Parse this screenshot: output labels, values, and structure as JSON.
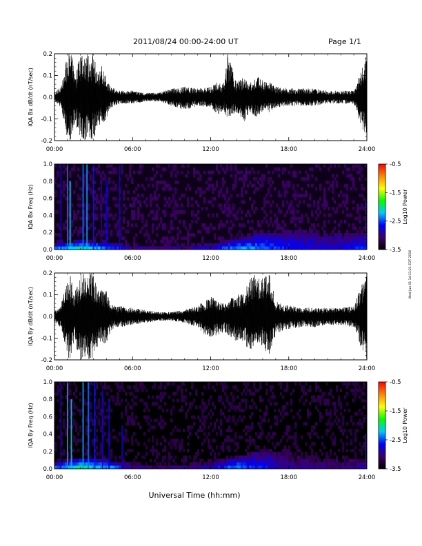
{
  "header": {
    "title": "2011/08/24  00:00-24:00 UT",
    "page": "Page 1/1"
  },
  "footer": {
    "xlabel": "Universal Time (hh:mm)",
    "side_note": "Wed Jun 01 14:31:21 EDT 2016"
  },
  "colors": {
    "trace": "#000000",
    "colormap": [
      "#000000",
      "#3d0066",
      "#0000ff",
      "#00c8ff",
      "#00ff00",
      "#ffff00",
      "#ff8800",
      "#ff0000"
    ]
  },
  "chart_data": [
    {
      "type": "line",
      "title": "",
      "ylabel": "IQA Bx dB/dt (nT/sec)",
      "xlabel": "",
      "x_ticks": [
        "00:00",
        "06:00",
        "12:00",
        "18:00",
        "24:00"
      ],
      "y_ticks": [
        "-0.2",
        "-0.1",
        "0.0",
        "0.1",
        "0.2"
      ],
      "xlim": [
        0,
        24
      ],
      "ylim": [
        -0.2,
        0.2
      ],
      "series": [
        {
          "x": [
            0,
            0.5,
            1.0,
            1.3,
            1.6,
            2.0,
            2.2,
            2.5,
            3.0,
            3.3,
            3.6,
            4.0,
            4.3,
            4.6,
            5.0,
            6.0,
            7.0,
            8.0,
            9.0,
            10.0,
            11.0,
            12.0,
            12.5,
            13.0,
            13.3,
            14.0,
            14.5,
            15.0,
            15.5,
            16.0,
            16.5,
            17.0,
            18.0,
            19.0,
            20.0,
            21.0,
            22.0,
            23.0,
            23.9,
            24.0
          ],
          "y_max": [
            0.02,
            0.05,
            0.2,
            0.2,
            0.1,
            0.2,
            0.2,
            0.2,
            0.2,
            0.12,
            0.15,
            0.09,
            0.05,
            0.04,
            0.03,
            0.03,
            0.02,
            0.02,
            0.04,
            0.05,
            0.04,
            0.05,
            0.07,
            0.06,
            0.2,
            0.07,
            0.09,
            0.07,
            0.1,
            0.08,
            0.07,
            0.05,
            0.04,
            0.04,
            0.04,
            0.03,
            0.03,
            0.03,
            0.2,
            0.2
          ],
          "y_min": [
            -0.02,
            -0.05,
            -0.2,
            -0.2,
            -0.12,
            -0.2,
            -0.2,
            -0.2,
            -0.2,
            -0.14,
            -0.12,
            -0.11,
            -0.05,
            -0.04,
            -0.03,
            -0.03,
            -0.02,
            -0.02,
            -0.04,
            -0.06,
            -0.04,
            -0.05,
            -0.09,
            -0.06,
            -0.1,
            -0.07,
            -0.12,
            -0.08,
            -0.09,
            -0.08,
            -0.07,
            -0.05,
            -0.04,
            -0.04,
            -0.04,
            -0.03,
            -0.03,
            -0.03,
            -0.2,
            -0.2
          ]
        }
      ]
    },
    {
      "type": "heatmap",
      "title": "",
      "ylabel": "IQA Bx Freq (Hz)",
      "xlabel": "",
      "x_ticks": [
        "00:00",
        "06:00",
        "12:00",
        "18:00",
        "24:00"
      ],
      "y_ticks": [
        "0.0",
        "0.2",
        "0.4",
        "0.6",
        "0.8",
        "1.0"
      ],
      "xlim": [
        0,
        24
      ],
      "ylim": [
        0,
        1.0
      ],
      "colorbar": {
        "label": "Log10 Power",
        "ticks": [
          "-0.5",
          "-1.5",
          "-2.5",
          "-3.5"
        ],
        "range": [
          -3.5,
          -0.5
        ]
      },
      "background_level": -3.4,
      "low_freq_band": {
        "x": [
          0,
          2,
          4,
          6,
          8,
          10,
          12,
          14,
          16,
          18,
          20,
          22,
          24
        ],
        "top_hz": [
          0.08,
          0.1,
          0.08,
          0.06,
          0.05,
          0.06,
          0.08,
          0.12,
          0.2,
          0.22,
          0.22,
          0.2,
          0.2
        ],
        "peak_level": [
          -2.3,
          -1.9,
          -2.2,
          -2.8,
          -3.0,
          -2.9,
          -2.7,
          -2.2,
          -2.4,
          -2.6,
          -2.7,
          -2.7,
          -2.5
        ]
      },
      "streaks": [
        {
          "t": 0.5,
          "top_hz": 1.0,
          "level": -2.8
        },
        {
          "t": 1.0,
          "top_hz": 1.0,
          "level": -2.4
        },
        {
          "t": 1.2,
          "top_hz": 0.8,
          "level": -2.2
        },
        {
          "t": 2.2,
          "top_hz": 1.0,
          "level": -2.4
        },
        {
          "t": 2.5,
          "top_hz": 1.0,
          "level": -2.3
        },
        {
          "t": 3.0,
          "top_hz": 1.0,
          "level": -2.6
        },
        {
          "t": 3.6,
          "top_hz": 0.9,
          "level": -2.8
        },
        {
          "t": 4.0,
          "top_hz": 0.8,
          "level": -2.7
        },
        {
          "t": 5.0,
          "top_hz": 1.0,
          "level": -2.7
        },
        {
          "t": 23.9,
          "top_hz": 0.6,
          "level": -2.6
        }
      ]
    },
    {
      "type": "line",
      "title": "",
      "ylabel": "IQA By dB/dt (nT/sec)",
      "xlabel": "",
      "x_ticks": [
        "00:00",
        "06:00",
        "12:00",
        "18:00",
        "24:00"
      ],
      "y_ticks": [
        "-0.2",
        "-0.1",
        "0.0",
        "0.1",
        "0.2"
      ],
      "xlim": [
        0,
        24
      ],
      "ylim": [
        -0.2,
        0.2
      ],
      "series": [
        {
          "x": [
            0,
            0.5,
            1.0,
            1.2,
            1.5,
            2.0,
            2.3,
            2.7,
            3.0,
            3.3,
            3.6,
            4.0,
            4.3,
            4.6,
            5.0,
            6.0,
            7.0,
            8.0,
            9.0,
            10.0,
            11.0,
            11.5,
            12.0,
            12.5,
            13.0,
            14.0,
            14.5,
            15.0,
            15.5,
            16.0,
            16.5,
            17.0,
            18.0,
            19.0,
            20.0,
            21.0,
            22.0,
            23.0,
            23.9,
            24.0
          ],
          "y_max": [
            0.03,
            0.05,
            0.2,
            0.2,
            0.1,
            0.2,
            0.2,
            0.2,
            0.2,
            0.12,
            0.12,
            0.12,
            0.06,
            0.05,
            0.05,
            0.04,
            0.03,
            0.02,
            0.02,
            0.03,
            0.05,
            0.07,
            0.09,
            0.08,
            0.06,
            0.1,
            0.11,
            0.17,
            0.2,
            0.18,
            0.2,
            0.07,
            0.05,
            0.04,
            0.04,
            0.04,
            0.04,
            0.05,
            0.2,
            0.2
          ],
          "y_min": [
            -0.03,
            -0.05,
            -0.2,
            -0.2,
            -0.12,
            -0.2,
            -0.2,
            -0.2,
            -0.2,
            -0.14,
            -0.12,
            -0.13,
            -0.07,
            -0.05,
            -0.05,
            -0.04,
            -0.03,
            -0.02,
            -0.02,
            -0.03,
            -0.05,
            -0.08,
            -0.1,
            -0.09,
            -0.07,
            -0.12,
            -0.12,
            -0.16,
            -0.12,
            -0.14,
            -0.18,
            -0.08,
            -0.06,
            -0.05,
            -0.05,
            -0.04,
            -0.04,
            -0.05,
            -0.2,
            -0.2
          ]
        }
      ]
    },
    {
      "type": "heatmap",
      "title": "",
      "ylabel": "IQA By Freq (Hz)",
      "xlabel": "Universal Time (hh:mm)",
      "x_ticks": [
        "00:00",
        "06:00",
        "12:00",
        "18:00",
        "24:00"
      ],
      "y_ticks": [
        "0.0",
        "0.2",
        "0.4",
        "0.6",
        "0.8",
        "1.0"
      ],
      "xlim": [
        0,
        24
      ],
      "ylim": [
        0,
        1.0
      ],
      "colorbar": {
        "label": "Log10 Power",
        "ticks": [
          "-0.5",
          "-1.5",
          "-2.5",
          "-3.5"
        ],
        "range": [
          -3.5,
          -0.5
        ]
      },
      "background_level": -3.5,
      "low_freq_band": {
        "x": [
          0,
          2,
          4,
          6,
          8,
          10,
          12,
          14,
          16,
          18,
          20,
          22,
          24
        ],
        "top_hz": [
          0.08,
          0.12,
          0.1,
          0.06,
          0.05,
          0.06,
          0.08,
          0.14,
          0.22,
          0.2,
          0.16,
          0.14,
          0.12
        ],
        "peak_level": [
          -2.3,
          -1.8,
          -2.1,
          -2.8,
          -3.0,
          -2.9,
          -2.7,
          -2.3,
          -2.6,
          -2.9,
          -3.0,
          -3.0,
          -2.8
        ]
      },
      "streaks": [
        {
          "t": 0.5,
          "top_hz": 1.0,
          "level": -2.9
        },
        {
          "t": 1.0,
          "top_hz": 1.0,
          "level": -2.3
        },
        {
          "t": 1.3,
          "top_hz": 0.8,
          "level": -2.2
        },
        {
          "t": 2.2,
          "top_hz": 1.0,
          "level": -2.3
        },
        {
          "t": 2.6,
          "top_hz": 1.0,
          "level": -2.4
        },
        {
          "t": 3.1,
          "top_hz": 1.0,
          "level": -2.6
        },
        {
          "t": 3.7,
          "top_hz": 0.9,
          "level": -2.8
        },
        {
          "t": 4.2,
          "top_hz": 0.8,
          "level": -2.7
        },
        {
          "t": 5.2,
          "top_hz": 0.5,
          "level": -2.8
        },
        {
          "t": 23.9,
          "top_hz": 0.4,
          "level": -2.6
        }
      ]
    }
  ]
}
